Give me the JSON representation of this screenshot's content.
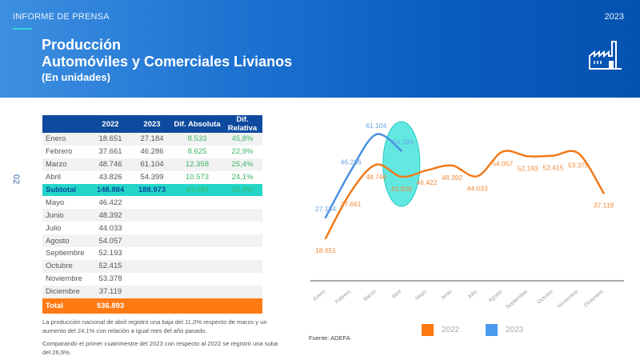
{
  "header": {
    "kicker": "INFORME DE PRENSA",
    "year": "2023",
    "title_line1": "Producción",
    "title_line2": "Automóviles y Comerciales Livianos",
    "title_line3": "(En unidades)",
    "icon": "factory-icon"
  },
  "page_number": "02",
  "table": {
    "headers": [
      "",
      "2022",
      "2023",
      "Dif. Absoluta",
      "Dif. Relativa"
    ],
    "rows": [
      {
        "month": "Enero",
        "y2022": "18.651",
        "y2023": "27.184",
        "abs": "8.533",
        "rel": "45,8%"
      },
      {
        "month": "Febrero",
        "y2022": "37.661",
        "y2023": "46.286",
        "abs": "8.625",
        "rel": "22,9%"
      },
      {
        "month": "Marzo",
        "y2022": "48.746",
        "y2023": "61.104",
        "abs": "12.358",
        "rel": "25,4%"
      },
      {
        "month": "Abril",
        "y2022": "43.826",
        "y2023": "54.399",
        "abs": "10.573",
        "rel": "24,1%"
      },
      {
        "month": "Subtotal",
        "y2022": "148.884",
        "y2023": "188.973",
        "abs": "40.089",
        "rel": "26,9%"
      },
      {
        "month": "Mayo",
        "y2022": "46.422",
        "y2023": "",
        "abs": "",
        "rel": ""
      },
      {
        "month": "Junio",
        "y2022": "48.392",
        "y2023": "",
        "abs": "",
        "rel": ""
      },
      {
        "month": "Julio",
        "y2022": "44.033",
        "y2023": "",
        "abs": "",
        "rel": ""
      },
      {
        "month": "Agosto",
        "y2022": "54.057",
        "y2023": "",
        "abs": "",
        "rel": ""
      },
      {
        "month": "Septiembre",
        "y2022": "52.193",
        "y2023": "",
        "abs": "",
        "rel": ""
      },
      {
        "month": "Octubre",
        "y2022": "52.415",
        "y2023": "",
        "abs": "",
        "rel": ""
      },
      {
        "month": "Noviembre",
        "y2022": "53.378",
        "y2023": "",
        "abs": "",
        "rel": ""
      },
      {
        "month": "Diciembre",
        "y2022": "37.119",
        "y2023": "",
        "abs": "",
        "rel": ""
      },
      {
        "month": "Total",
        "y2022": "536.893",
        "y2023": "",
        "abs": "",
        "rel": ""
      }
    ]
  },
  "notes": {
    "p1": "La producción nacional de abril registró una baja del 11,0% respecto de marzo y un aumento del 24,1% con relación a igual mes del año pasado.",
    "p2": "Comparando el primer cuatrimestre del 2023 con respecto al 2022 se registró una suba del 26,9%."
  },
  "source": "Fuente: ADEFA",
  "colors": {
    "series_2022": "#f07a1a",
    "series_2023": "#4a90e2",
    "highlight": "#24d6c8",
    "header_blue": "#0e4a9e",
    "total_orange": "#ff7a12"
  },
  "chart_data": {
    "type": "line",
    "title": "",
    "xlabel": "",
    "ylabel": "",
    "categories": [
      "Enero",
      "Febrero",
      "Marzo",
      "Abril",
      "Mayo",
      "Junio",
      "Julio",
      "Agosto",
      "Septiembre",
      "Octubre",
      "Noviembre",
      "Diciembre"
    ],
    "series": [
      {
        "name": "2022",
        "color": "#f07a1a",
        "values": [
          18651,
          37661,
          48746,
          43826,
          46422,
          48392,
          44033,
          54057,
          52193,
          52415,
          53378,
          37119
        ],
        "labels": [
          "18.651",
          "37.661",
          "48.746",
          "43.826",
          "46.422",
          "48.392",
          "44.033",
          "54.057",
          "52.193",
          "52.415",
          "53.378",
          "37.119"
        ]
      },
      {
        "name": "2023",
        "color": "#4a90e2",
        "values": [
          27184,
          46286,
          61104,
          54399
        ],
        "labels": [
          "27.184",
          "46.286",
          "61.104",
          "54.399"
        ]
      }
    ],
    "annotations": [
      "Abril highlighted with cyan ellipse"
    ],
    "grid": false,
    "legend_position": "bottom",
    "smooth": true
  }
}
